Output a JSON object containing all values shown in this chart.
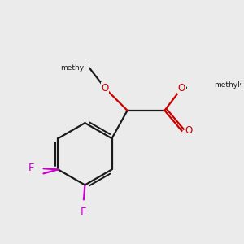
{
  "bg_color": "#ebebeb",
  "bond_color": "#1a1a1a",
  "oxygen_color": "#cc0000",
  "fluorine_color": "#cc00cc",
  "lw": 1.6,
  "fs": 8.5,
  "fig_size": [
    3.0,
    3.0
  ],
  "dpi": 100,
  "xlim": [
    -2.5,
    3.5
  ],
  "ylim": [
    -3.2,
    2.8
  ]
}
